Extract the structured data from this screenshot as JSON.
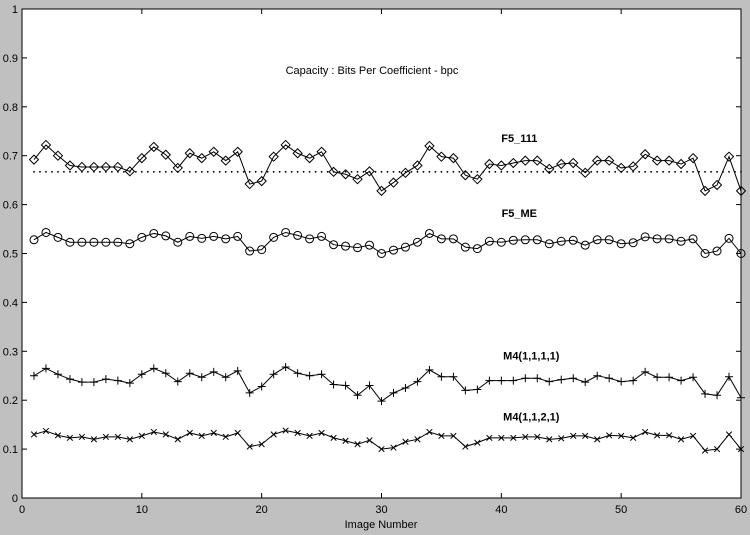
{
  "chart_data": {
    "type": "line",
    "title": "",
    "annotation": "Capacity : Bits Per Coefficient - bpc",
    "xlabel": "Image Number",
    "ylabel": "",
    "xlim": [
      0,
      60
    ],
    "ylim": [
      0,
      1
    ],
    "grid": false,
    "x_ticks": [
      0,
      10,
      20,
      30,
      40,
      50,
      60
    ],
    "y_ticks": [
      0,
      0.1,
      0.2,
      0.3,
      0.4,
      0.5,
      0.6,
      0.7,
      0.8,
      0.9,
      1
    ],
    "x_tick_labels": [
      "0",
      "10",
      "20",
      "30",
      "40",
      "50",
      "60"
    ],
    "y_tick_labels": [
      "0",
      "0.1",
      "0.2",
      "0.3",
      "0.4",
      "0.5",
      "0.6",
      "0.7",
      "0.8",
      "0.9",
      "1"
    ],
    "x": [
      1,
      2,
      3,
      4,
      5,
      6,
      7,
      8,
      9,
      10,
      11,
      12,
      13,
      14,
      15,
      16,
      17,
      18,
      19,
      20,
      21,
      22,
      23,
      24,
      25,
      26,
      27,
      28,
      29,
      30,
      31,
      32,
      33,
      34,
      35,
      36,
      37,
      38,
      39,
      40,
      41,
      42,
      43,
      44,
      45,
      46,
      47,
      48,
      49,
      50,
      51,
      52,
      53,
      54,
      55,
      56,
      57,
      58,
      59,
      60
    ],
    "reference_line": {
      "y": 0.667,
      "style": "dotted"
    },
    "series": [
      {
        "name": "F5_111",
        "marker": "diamond",
        "values": [
          0.692,
          0.722,
          0.7,
          0.68,
          0.677,
          0.677,
          0.677,
          0.677,
          0.668,
          0.695,
          0.718,
          0.702,
          0.675,
          0.705,
          0.695,
          0.708,
          0.69,
          0.708,
          0.642,
          0.648,
          0.698,
          0.722,
          0.705,
          0.695,
          0.708,
          0.667,
          0.662,
          0.652,
          0.668,
          0.628,
          0.645,
          0.665,
          0.68,
          0.72,
          0.698,
          0.695,
          0.66,
          0.652,
          0.683,
          0.68,
          0.685,
          0.69,
          0.69,
          0.673,
          0.683,
          0.685,
          0.665,
          0.69,
          0.69,
          0.675,
          0.678,
          0.703,
          0.69,
          0.69,
          0.683,
          0.695,
          0.628,
          0.64,
          0.698,
          0.628
        ]
      },
      {
        "name": "F5_ME",
        "marker": "circle",
        "values": [
          0.528,
          0.543,
          0.533,
          0.523,
          0.523,
          0.523,
          0.523,
          0.523,
          0.52,
          0.533,
          0.541,
          0.536,
          0.523,
          0.535,
          0.531,
          0.535,
          0.53,
          0.535,
          0.505,
          0.508,
          0.533,
          0.543,
          0.537,
          0.53,
          0.535,
          0.518,
          0.515,
          0.512,
          0.517,
          0.5,
          0.507,
          0.513,
          0.523,
          0.541,
          0.53,
          0.53,
          0.513,
          0.51,
          0.525,
          0.523,
          0.527,
          0.528,
          0.528,
          0.52,
          0.525,
          0.527,
          0.517,
          0.528,
          0.528,
          0.52,
          0.522,
          0.534,
          0.53,
          0.53,
          0.525,
          0.53,
          0.5,
          0.505,
          0.531,
          0.5
        ]
      },
      {
        "name": "M4(1,1,1,1)",
        "marker": "plus",
        "values": [
          0.25,
          0.265,
          0.253,
          0.243,
          0.237,
          0.237,
          0.243,
          0.24,
          0.235,
          0.253,
          0.265,
          0.255,
          0.238,
          0.255,
          0.247,
          0.258,
          0.247,
          0.26,
          0.215,
          0.228,
          0.253,
          0.268,
          0.255,
          0.25,
          0.253,
          0.232,
          0.23,
          0.21,
          0.23,
          0.198,
          0.215,
          0.225,
          0.238,
          0.262,
          0.248,
          0.248,
          0.22,
          0.222,
          0.24,
          0.24,
          0.24,
          0.245,
          0.245,
          0.238,
          0.242,
          0.245,
          0.237,
          0.25,
          0.245,
          0.238,
          0.24,
          0.258,
          0.247,
          0.247,
          0.24,
          0.247,
          0.213,
          0.21,
          0.248,
          0.205
        ]
      },
      {
        "name": "M4(1,1,2,1)",
        "marker": "x",
        "values": [
          0.13,
          0.137,
          0.128,
          0.123,
          0.125,
          0.12,
          0.125,
          0.125,
          0.12,
          0.127,
          0.135,
          0.13,
          0.12,
          0.133,
          0.127,
          0.133,
          0.125,
          0.133,
          0.105,
          0.11,
          0.13,
          0.138,
          0.133,
          0.127,
          0.133,
          0.123,
          0.117,
          0.11,
          0.118,
          0.1,
          0.103,
          0.115,
          0.12,
          0.135,
          0.127,
          0.127,
          0.105,
          0.113,
          0.123,
          0.123,
          0.123,
          0.125,
          0.125,
          0.12,
          0.122,
          0.127,
          0.127,
          0.12,
          0.128,
          0.127,
          0.123,
          0.135,
          0.128,
          0.128,
          0.12,
          0.127,
          0.097,
          0.1,
          0.13,
          0.1
        ]
      }
    ]
  }
}
